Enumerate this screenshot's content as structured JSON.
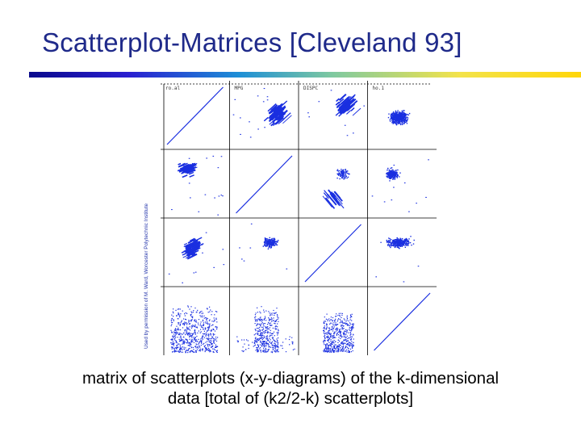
{
  "slide": {
    "title": "Scatterplot-Matrices [Cleveland 93]",
    "credit": "Used by permission of M. Ward, Worcester Polytechnic Institute",
    "caption_line1": "matrix of scatterplots (x-y-diagrams) of the k-dimensional",
    "caption_line2": "data [total of (k2/2-k) scatterplots]"
  },
  "colors": {
    "title": "#1f2a8a",
    "points": "#1a2fe0",
    "gridline": "#000000"
  },
  "matrix": {
    "dimensions": 4,
    "cell_labels": [
      "ro.al",
      "MPG",
      "DISPC",
      "ho.1"
    ]
  }
}
